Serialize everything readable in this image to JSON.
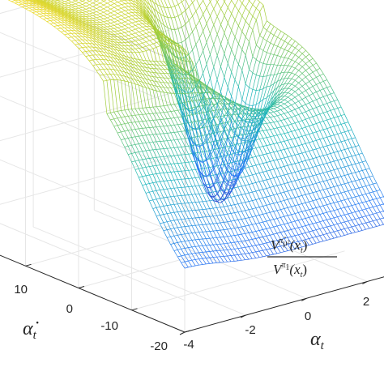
{
  "chart_data": {
    "type": "surface",
    "render": "mesh",
    "colormap": "parula",
    "grid": true,
    "x_axis": {
      "label_base": "α",
      "label_sub": "t",
      "ticks": [
        "-4",
        "-2",
        "0",
        "2"
      ],
      "tick_values": [
        -4,
        -2,
        0,
        2
      ],
      "range": [
        -4,
        3
      ]
    },
    "y_axis": {
      "label_base": "α̇",
      "label_sub": "t",
      "ticks": [
        "-20",
        "-10",
        "0",
        "10"
      ],
      "tick_values": [
        -20,
        -10,
        0,
        10
      ],
      "range": [
        -20,
        20
      ]
    },
    "z_axis": {
      "ratio_num_base": "V",
      "ratio_num_sup": "π̂",
      "ratio_num_supsub": "μ²",
      "ratio_den_base": "V",
      "ratio_den_sup": "π",
      "ratio_den_supsub": "1",
      "ratio_arg": "(x",
      "ratio_arg_sub": "t",
      "ratio_arg_close": ")",
      "range": [
        0.7,
        1.12
      ]
    },
    "surface_samples": {
      "note_units": "z is the value ratio; sampled description of the surface shape",
      "points": [
        {
          "x": -4,
          "y": -20,
          "z": 0.72
        },
        {
          "x": -4,
          "y": 0,
          "z": 1.0
        },
        {
          "x": -4,
          "y": 20,
          "z": 1.05
        },
        {
          "x": 0,
          "y": -20,
          "z": 0.86
        },
        {
          "x": 0,
          "y": 0,
          "z": 1.02
        },
        {
          "x": 0,
          "y": 20,
          "z": 1.1
        },
        {
          "x": 1,
          "y": 5,
          "z": 0.78
        },
        {
          "x": 3,
          "y": -20,
          "z": 0.9
        },
        {
          "x": 3,
          "y": 0,
          "z": 0.97
        },
        {
          "x": 3,
          "y": 20,
          "z": 1.04
        }
      ]
    }
  }
}
